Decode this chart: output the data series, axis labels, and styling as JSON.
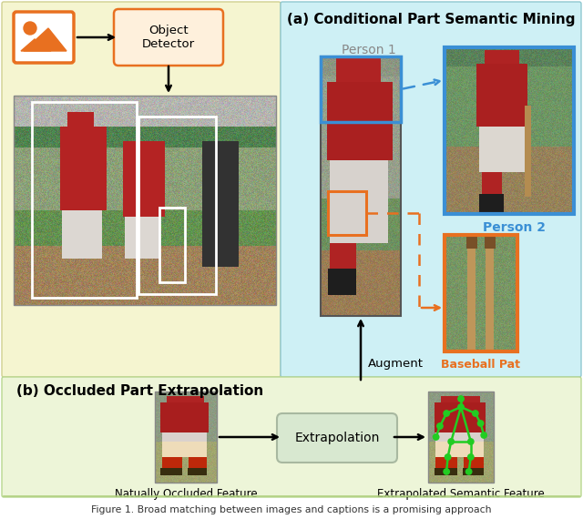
{
  "fig_width": 6.4,
  "fig_height": 5.81,
  "dpi": 100,
  "bg_top_left": "#f5f5d0",
  "bg_top_right": "#cef0f5",
  "bg_bottom": "#edf5d8",
  "title_a": "(a) Conditional Part Semantic Mining",
  "title_b": "(b) Occluded Part Extrapolation",
  "person1_label": "Person 1",
  "person2_label": "Person 2",
  "baseball_label": "Baseball Pat",
  "augment_label": "Augment",
  "naturally_label": "Natually Occluded Feature",
  "extrapolated_label": "Extrapolated Semantic Feature",
  "extrapolation_box_label": "Extrapolation",
  "object_detector_label": "Object\nDetector",
  "caption": "Figure 1. Broad matching between images and captions is a promising approach",
  "orange_color": "#E87020",
  "blue_color": "#3A8FD5",
  "green_color": "#22CC22"
}
